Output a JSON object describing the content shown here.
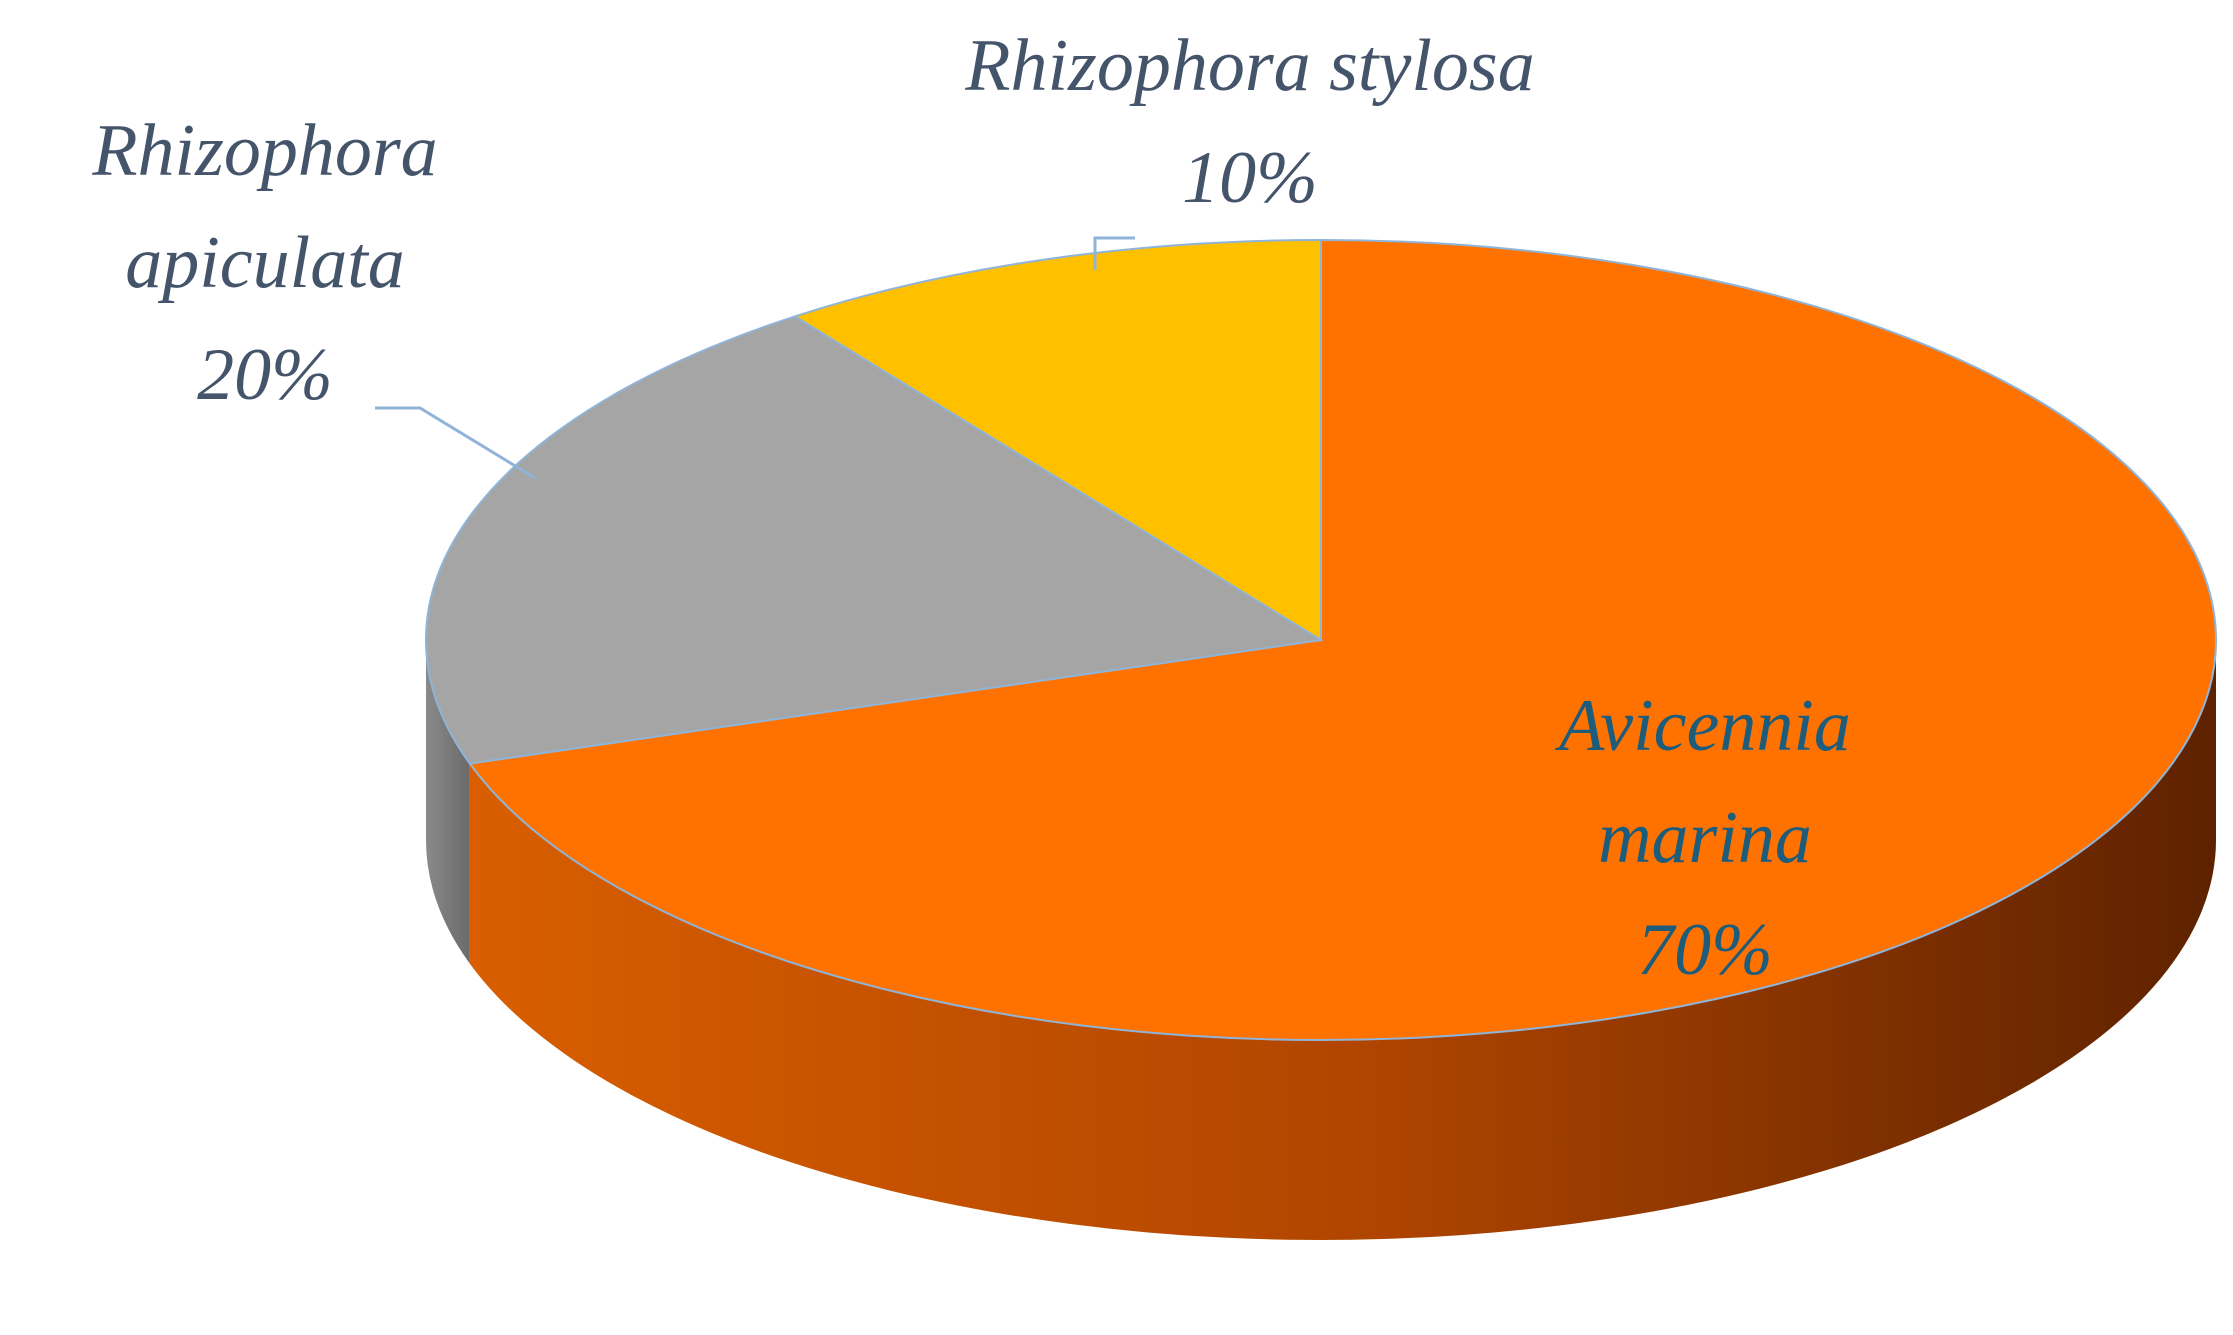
{
  "chart_data": {
    "type": "pie",
    "view": "3d",
    "categories": [
      "Avicennia marina",
      "Rhizophora apiculata",
      "Rhizophora stylosa"
    ],
    "values": [
      70,
      20,
      10
    ],
    "value_labels": [
      "70%",
      "20%",
      "10%"
    ],
    "colors": [
      "#ff7200",
      "#a5a5a5",
      "#ffc000"
    ]
  }
}
